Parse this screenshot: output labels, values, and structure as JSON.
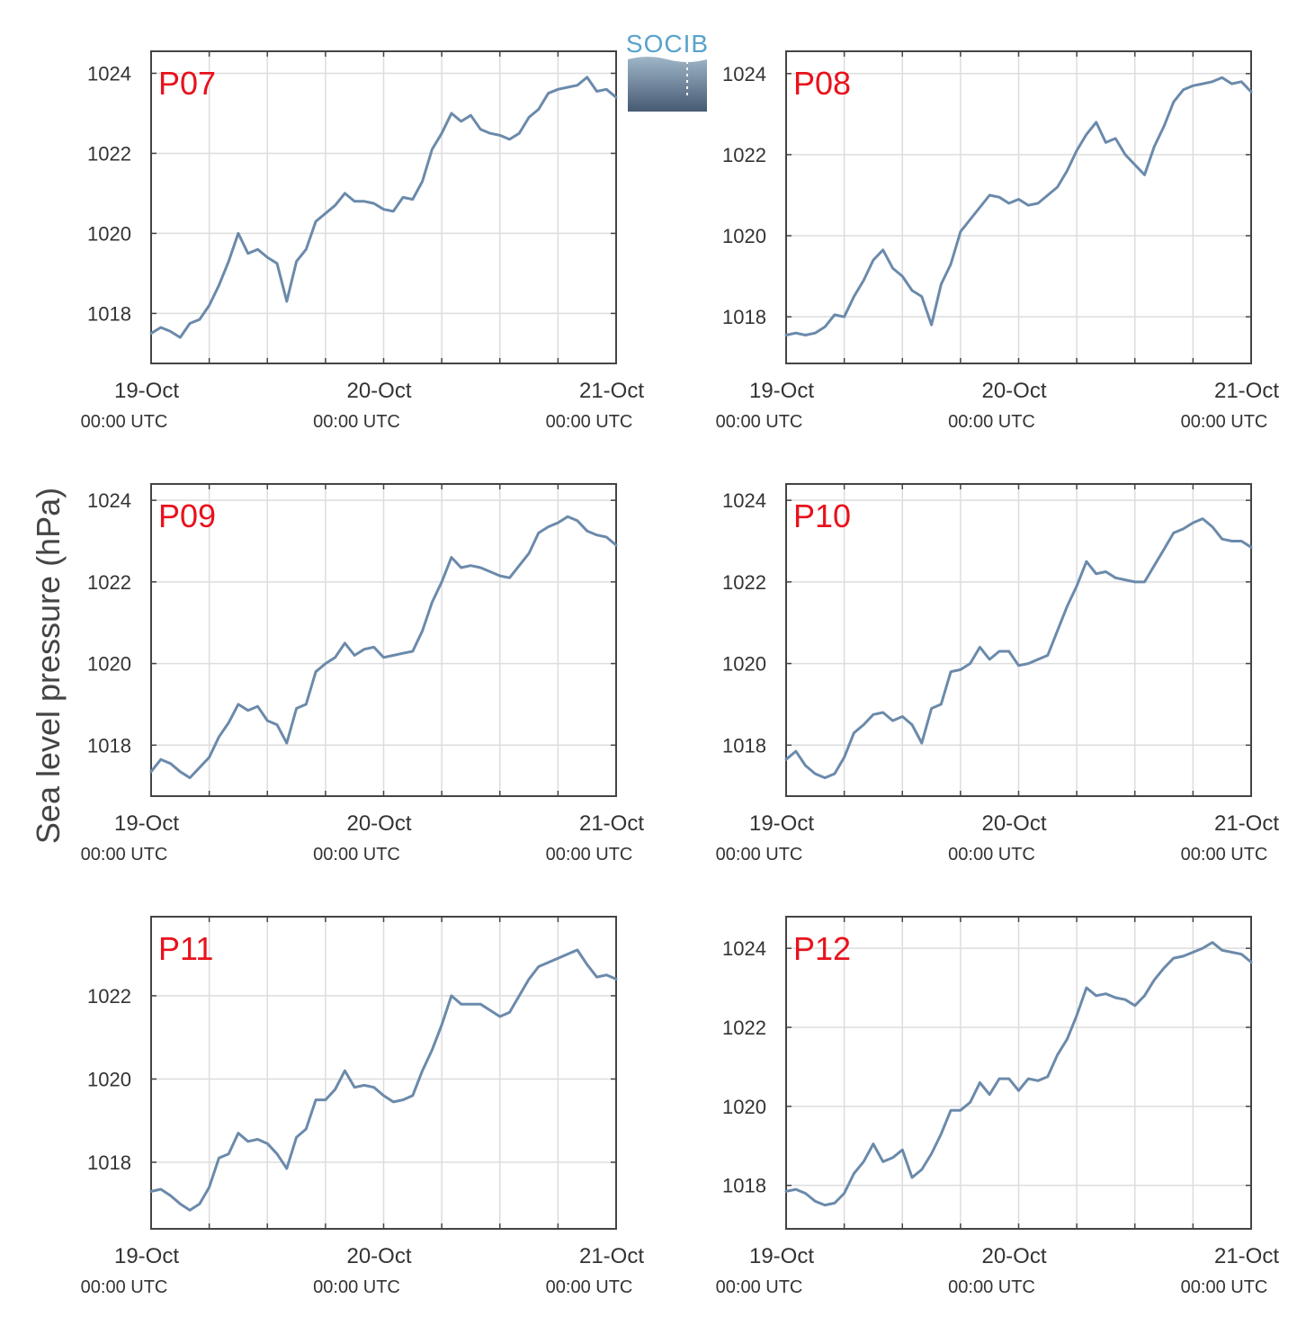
{
  "ylabel": "Sea level pressure (hPa)",
  "logo": {
    "text": "SOCIB"
  },
  "colors": {
    "line": "#6b8aab",
    "title": "#e8121c",
    "grid": "#dddddd",
    "axis": "#444444"
  },
  "chart_data": [
    {
      "type": "line",
      "title": "P07",
      "xlim": [
        0,
        48
      ],
      "ylim": [
        1016.75,
        1024.55
      ],
      "yticks": [
        1018,
        1020,
        1022,
        1024
      ],
      "xticks": [
        0,
        24,
        48
      ],
      "xticklabels": [
        [
          "19-Oct",
          "00:00 UTC"
        ],
        [
          "20-Oct",
          "00:00 UTC"
        ],
        [
          "21-Oct",
          "00:00 UTC"
        ]
      ],
      "series": [
        {
          "x": [
            0,
            1,
            2,
            3,
            4,
            5,
            6,
            7,
            8,
            9,
            10,
            11,
            12,
            13,
            14,
            15,
            16,
            17,
            18,
            19,
            20,
            21,
            22,
            23,
            24,
            25,
            26,
            27,
            28,
            29,
            30,
            31,
            32,
            33,
            34,
            35,
            36,
            37,
            38,
            39,
            40,
            41,
            42,
            43,
            44,
            45,
            46,
            47,
            48
          ],
          "y": [
            1017.5,
            1017.65,
            1017.55,
            1017.4,
            1017.75,
            1017.85,
            1018.2,
            1018.7,
            1019.3,
            1020.0,
            1019.5,
            1019.6,
            1019.4,
            1019.25,
            1018.3,
            1019.3,
            1019.6,
            1020.3,
            1020.5,
            1020.7,
            1021.0,
            1020.8,
            1020.8,
            1020.75,
            1020.6,
            1020.55,
            1020.9,
            1020.85,
            1021.3,
            1022.1,
            1022.5,
            1023.0,
            1022.8,
            1022.95,
            1022.6,
            1022.5,
            1022.45,
            1022.35,
            1022.5,
            1022.9,
            1023.1,
            1023.5,
            1023.6,
            1023.65,
            1023.7,
            1023.9,
            1023.55,
            1023.6,
            1023.4
          ]
        }
      ]
    },
    {
      "type": "line",
      "title": "P08",
      "xlim": [
        0,
        48
      ],
      "ylim": [
        1016.85,
        1024.55
      ],
      "yticks": [
        1018,
        1020,
        1022,
        1024
      ],
      "xticks": [
        0,
        24,
        48
      ],
      "xticklabels": [
        [
          "19-Oct",
          "00:00 UTC"
        ],
        [
          "20-Oct",
          "00:00 UTC"
        ],
        [
          "21-Oct",
          "00:00 UTC"
        ]
      ],
      "series": [
        {
          "x": [
            0,
            1,
            2,
            3,
            4,
            5,
            6,
            7,
            8,
            9,
            10,
            11,
            12,
            13,
            14,
            15,
            16,
            17,
            18,
            19,
            20,
            21,
            22,
            23,
            24,
            25,
            26,
            27,
            28,
            29,
            30,
            31,
            32,
            33,
            34,
            35,
            36,
            37,
            38,
            39,
            40,
            41,
            42,
            43,
            44,
            45,
            46,
            47,
            48
          ],
          "y": [
            1017.55,
            1017.6,
            1017.55,
            1017.6,
            1017.75,
            1018.05,
            1018.0,
            1018.5,
            1018.9,
            1019.4,
            1019.65,
            1019.2,
            1019.0,
            1018.65,
            1018.5,
            1017.8,
            1018.8,
            1019.3,
            1020.1,
            1020.4,
            1020.7,
            1021.0,
            1020.95,
            1020.8,
            1020.9,
            1020.75,
            1020.8,
            1021.0,
            1021.2,
            1021.6,
            1022.1,
            1022.5,
            1022.8,
            1022.3,
            1022.4,
            1022.0,
            1021.75,
            1021.5,
            1022.2,
            1022.7,
            1023.3,
            1023.6,
            1023.7,
            1023.75,
            1023.8,
            1023.9,
            1023.75,
            1023.8,
            1023.55
          ]
        }
      ]
    },
    {
      "type": "line",
      "title": "P09",
      "xlim": [
        0,
        48
      ],
      "ylim": [
        1016.75,
        1024.4
      ],
      "yticks": [
        1018,
        1020,
        1022,
        1024
      ],
      "xticks": [
        0,
        24,
        48
      ],
      "xticklabels": [
        [
          "19-Oct",
          "00:00 UTC"
        ],
        [
          "20-Oct",
          "00:00 UTC"
        ],
        [
          "21-Oct",
          "00:00 UTC"
        ]
      ],
      "series": [
        {
          "x": [
            0,
            1,
            2,
            3,
            4,
            5,
            6,
            7,
            8,
            9,
            10,
            11,
            12,
            13,
            14,
            15,
            16,
            17,
            18,
            19,
            20,
            21,
            22,
            23,
            24,
            25,
            26,
            27,
            28,
            29,
            30,
            31,
            32,
            33,
            34,
            35,
            36,
            37,
            38,
            39,
            40,
            41,
            42,
            43,
            44,
            45,
            46,
            47,
            48
          ],
          "y": [
            1017.35,
            1017.65,
            1017.55,
            1017.35,
            1017.2,
            1017.45,
            1017.7,
            1018.2,
            1018.55,
            1019.0,
            1018.85,
            1018.95,
            1018.6,
            1018.5,
            1018.05,
            1018.9,
            1019.0,
            1019.8,
            1020.0,
            1020.15,
            1020.5,
            1020.2,
            1020.35,
            1020.4,
            1020.15,
            1020.2,
            1020.25,
            1020.3,
            1020.8,
            1021.5,
            1022.0,
            1022.6,
            1022.35,
            1022.4,
            1022.35,
            1022.25,
            1022.15,
            1022.1,
            1022.4,
            1022.7,
            1023.2,
            1023.35,
            1023.45,
            1023.6,
            1023.5,
            1023.25,
            1023.15,
            1023.1,
            1022.9
          ]
        }
      ]
    },
    {
      "type": "line",
      "title": "P10",
      "xlim": [
        0,
        48
      ],
      "ylim": [
        1016.75,
        1024.4
      ],
      "yticks": [
        1018,
        1020,
        1022,
        1024
      ],
      "xticks": [
        0,
        24,
        48
      ],
      "xticklabels": [
        [
          "19-Oct",
          "00:00 UTC"
        ],
        [
          "20-Oct",
          "00:00 UTC"
        ],
        [
          "21-Oct",
          "00:00 UTC"
        ]
      ],
      "series": [
        {
          "x": [
            0,
            1,
            2,
            3,
            4,
            5,
            6,
            7,
            8,
            9,
            10,
            11,
            12,
            13,
            14,
            15,
            16,
            17,
            18,
            19,
            20,
            21,
            22,
            23,
            24,
            25,
            26,
            27,
            28,
            29,
            30,
            31,
            32,
            33,
            34,
            35,
            36,
            37,
            38,
            39,
            40,
            41,
            42,
            43,
            44,
            45,
            46,
            47,
            48
          ],
          "y": [
            1017.65,
            1017.85,
            1017.5,
            1017.3,
            1017.2,
            1017.3,
            1017.7,
            1018.3,
            1018.5,
            1018.75,
            1018.8,
            1018.6,
            1018.7,
            1018.5,
            1018.05,
            1018.9,
            1019.0,
            1019.8,
            1019.85,
            1020.0,
            1020.4,
            1020.1,
            1020.3,
            1020.3,
            1019.95,
            1020.0,
            1020.1,
            1020.2,
            1020.8,
            1021.4,
            1021.9,
            1022.5,
            1022.2,
            1022.25,
            1022.1,
            1022.05,
            1022.0,
            1022.0,
            1022.4,
            1022.8,
            1023.2,
            1023.3,
            1023.45,
            1023.55,
            1023.35,
            1023.05,
            1023.0,
            1023.0,
            1022.85
          ]
        }
      ]
    },
    {
      "type": "line",
      "title": "P11",
      "xlim": [
        0,
        48
      ],
      "ylim": [
        1016.4,
        1023.9
      ],
      "yticks": [
        1018,
        1020,
        1022
      ],
      "xticks": [
        0,
        24,
        48
      ],
      "xticklabels": [
        [
          "19-Oct",
          "00:00 UTC"
        ],
        [
          "20-Oct",
          "00:00 UTC"
        ],
        [
          "21-Oct",
          "00:00 UTC"
        ]
      ],
      "series": [
        {
          "x": [
            0,
            1,
            2,
            3,
            4,
            5,
            6,
            7,
            8,
            9,
            10,
            11,
            12,
            13,
            14,
            15,
            16,
            17,
            18,
            19,
            20,
            21,
            22,
            23,
            24,
            25,
            26,
            27,
            28,
            29,
            30,
            31,
            32,
            33,
            34,
            35,
            36,
            37,
            38,
            39,
            40,
            41,
            42,
            43,
            44,
            45,
            46,
            47,
            48
          ],
          "y": [
            1017.3,
            1017.35,
            1017.2,
            1017.0,
            1016.85,
            1017.0,
            1017.4,
            1018.1,
            1018.2,
            1018.7,
            1018.5,
            1018.55,
            1018.45,
            1018.2,
            1017.85,
            1018.6,
            1018.8,
            1019.5,
            1019.5,
            1019.75,
            1020.2,
            1019.8,
            1019.85,
            1019.8,
            1019.6,
            1019.45,
            1019.5,
            1019.6,
            1020.2,
            1020.7,
            1021.3,
            1022.0,
            1021.8,
            1021.8,
            1021.8,
            1021.65,
            1021.5,
            1021.6,
            1022.0,
            1022.4,
            1022.7,
            1022.8,
            1022.9,
            1023.0,
            1023.1,
            1022.75,
            1022.45,
            1022.5,
            1022.4
          ]
        }
      ]
    },
    {
      "type": "line",
      "title": "P12",
      "xlim": [
        0,
        48
      ],
      "ylim": [
        1016.9,
        1024.8
      ],
      "yticks": [
        1018,
        1020,
        1022,
        1024
      ],
      "xticks": [
        0,
        24,
        48
      ],
      "xticklabels": [
        [
          "19-Oct",
          "00:00 UTC"
        ],
        [
          "20-Oct",
          "00:00 UTC"
        ],
        [
          "21-Oct",
          "00:00 UTC"
        ]
      ],
      "series": [
        {
          "x": [
            0,
            1,
            2,
            3,
            4,
            5,
            6,
            7,
            8,
            9,
            10,
            11,
            12,
            13,
            14,
            15,
            16,
            17,
            18,
            19,
            20,
            21,
            22,
            23,
            24,
            25,
            26,
            27,
            28,
            29,
            30,
            31,
            32,
            33,
            34,
            35,
            36,
            37,
            38,
            39,
            40,
            41,
            42,
            43,
            44,
            45,
            46,
            47,
            48
          ],
          "y": [
            1017.85,
            1017.9,
            1017.8,
            1017.6,
            1017.5,
            1017.55,
            1017.8,
            1018.3,
            1018.6,
            1019.05,
            1018.6,
            1018.7,
            1018.9,
            1018.2,
            1018.4,
            1018.8,
            1019.3,
            1019.9,
            1019.9,
            1020.1,
            1020.6,
            1020.3,
            1020.7,
            1020.7,
            1020.4,
            1020.7,
            1020.65,
            1020.75,
            1021.3,
            1021.7,
            1022.3,
            1023.0,
            1022.8,
            1022.85,
            1022.75,
            1022.7,
            1022.55,
            1022.8,
            1023.2,
            1023.5,
            1023.75,
            1023.8,
            1023.9,
            1024.0,
            1024.15,
            1023.95,
            1023.9,
            1023.85,
            1023.65
          ]
        }
      ]
    }
  ]
}
